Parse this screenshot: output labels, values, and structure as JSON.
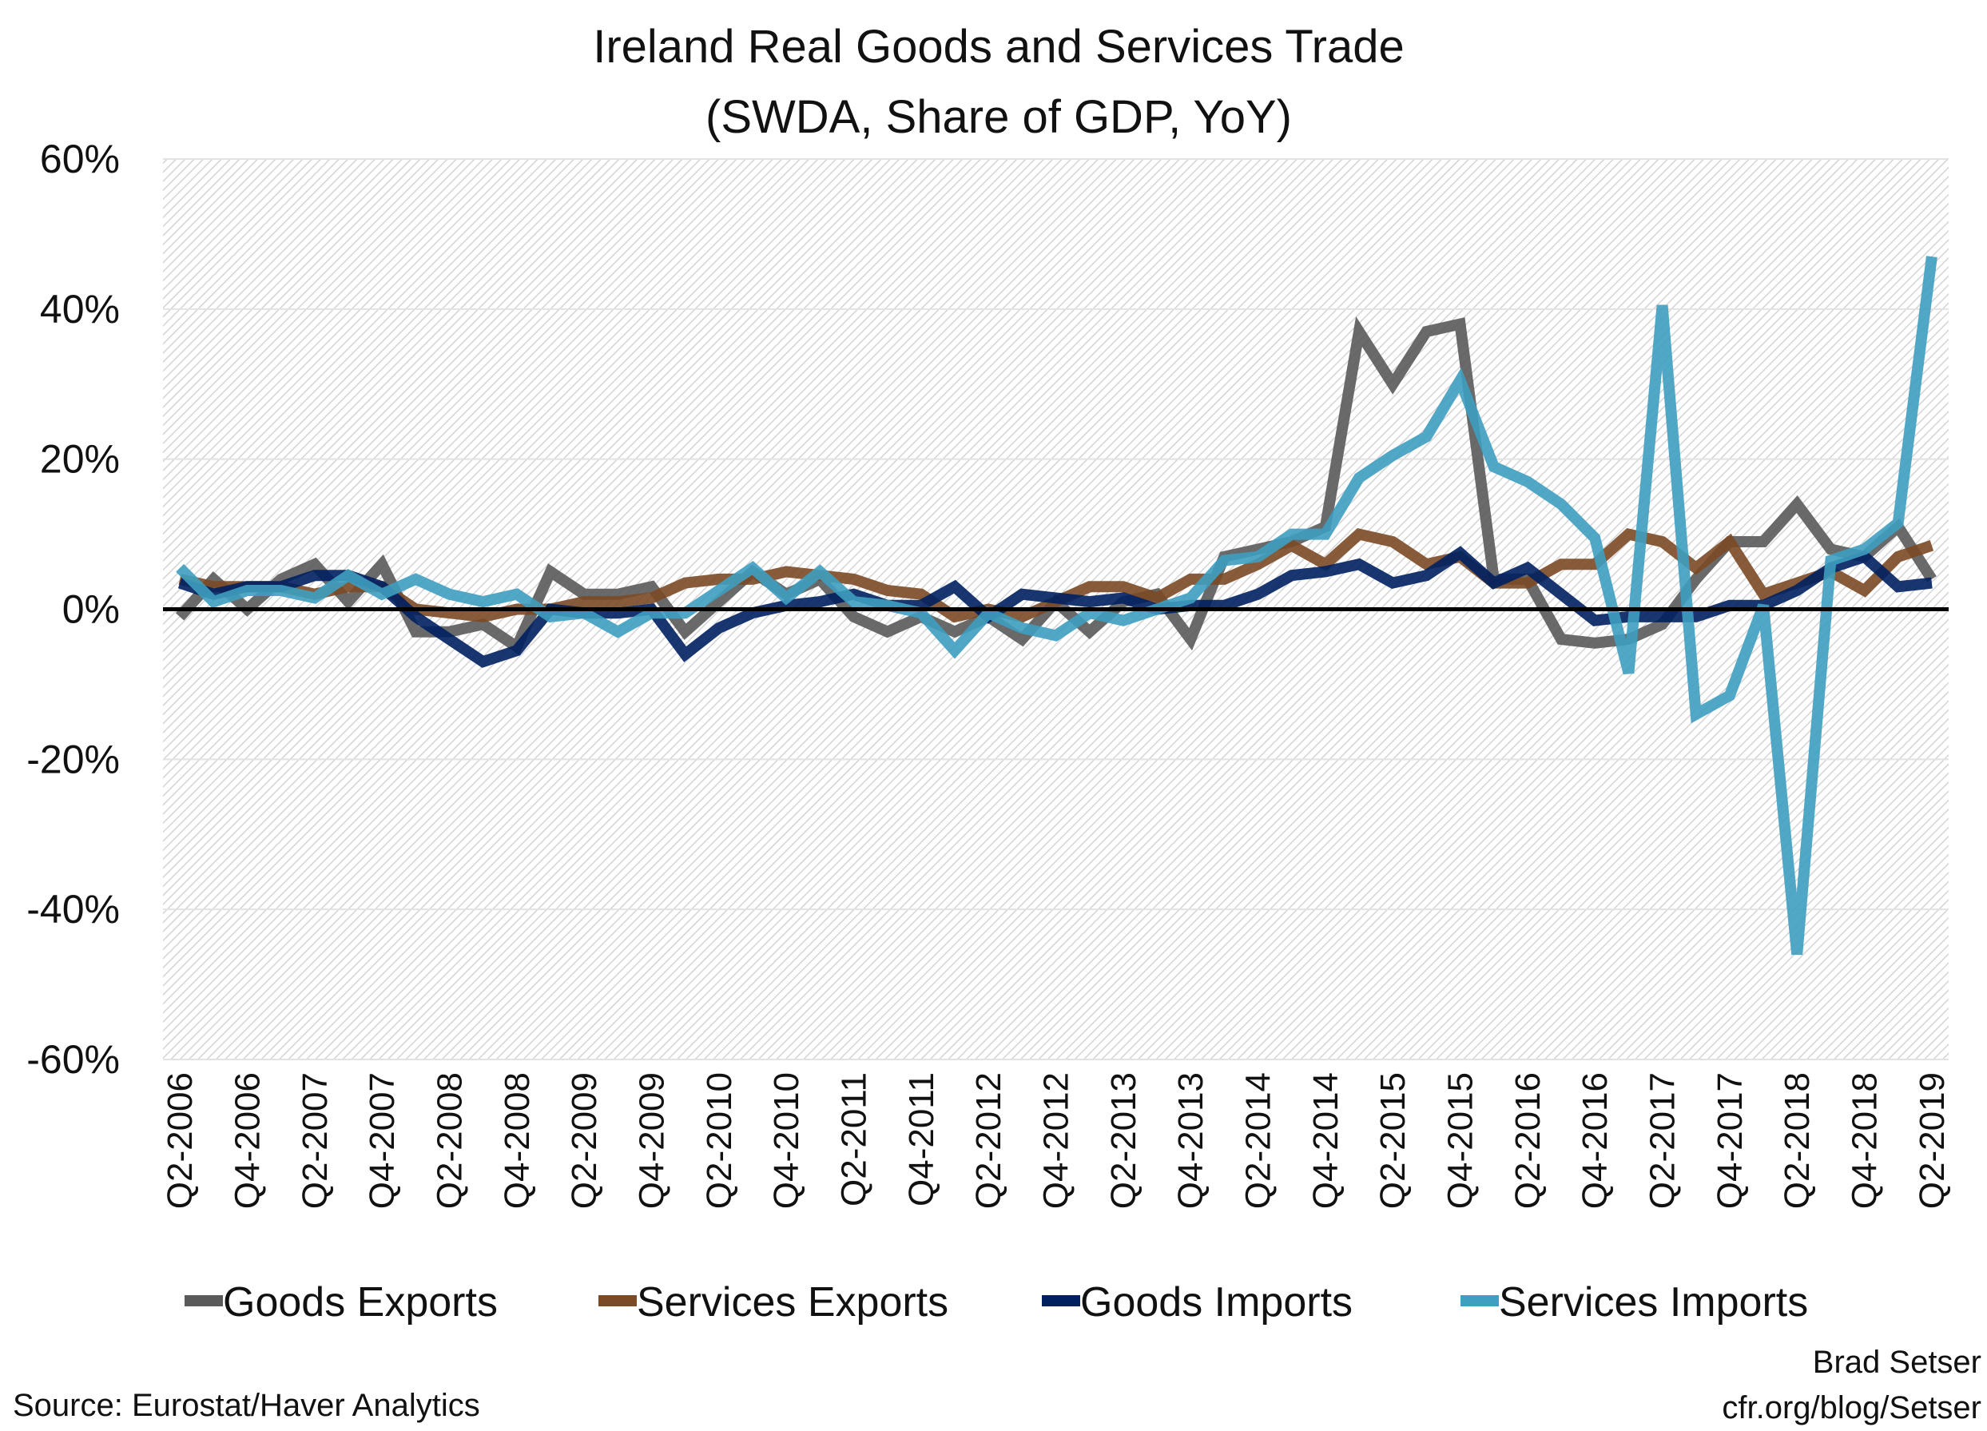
{
  "chart_data": {
    "type": "line",
    "title": "Ireland Real Goods and Services Trade",
    "subtitle": "(SWDA, Share of GDP, YoY)",
    "xlabel": "",
    "ylabel": "",
    "ylim": [
      -60,
      60
    ],
    "yticks": [
      "60%",
      "40%",
      "20%",
      "0%",
      "-20%",
      "-40%",
      "-60%"
    ],
    "ytick_values": [
      60,
      40,
      20,
      0,
      -20,
      -40,
      -60
    ],
    "grid": true,
    "legend_position": "bottom",
    "x": [
      "Q2-2006",
      "Q3-2006",
      "Q4-2006",
      "Q1-2007",
      "Q2-2007",
      "Q3-2007",
      "Q4-2007",
      "Q1-2008",
      "Q2-2008",
      "Q3-2008",
      "Q4-2008",
      "Q1-2009",
      "Q2-2009",
      "Q3-2009",
      "Q4-2009",
      "Q1-2010",
      "Q2-2010",
      "Q3-2010",
      "Q4-2010",
      "Q1-2011",
      "Q2-2011",
      "Q3-2011",
      "Q4-2011",
      "Q1-2012",
      "Q2-2012",
      "Q3-2012",
      "Q4-2012",
      "Q1-2013",
      "Q2-2013",
      "Q3-2013",
      "Q4-2013",
      "Q1-2014",
      "Q2-2014",
      "Q3-2014",
      "Q4-2014",
      "Q1-2015",
      "Q2-2015",
      "Q3-2015",
      "Q4-2015",
      "Q1-2016",
      "Q2-2016",
      "Q3-2016",
      "Q4-2016",
      "Q1-2017",
      "Q2-2017",
      "Q3-2017",
      "Q4-2017",
      "Q1-2018",
      "Q2-2018",
      "Q3-2018",
      "Q4-2018",
      "Q1-2019",
      "Q2-2019"
    ],
    "xtick_labels": [
      "Q2-2006",
      "Q4-2006",
      "Q2-2007",
      "Q4-2007",
      "Q2-2008",
      "Q4-2008",
      "Q2-2009",
      "Q4-2009",
      "Q2-2010",
      "Q4-2010",
      "Q2-2011",
      "Q4-2011",
      "Q2-2012",
      "Q4-2012",
      "Q2-2013",
      "Q4-2013",
      "Q2-2014",
      "Q4-2014",
      "Q2-2015",
      "Q4-2015",
      "Q2-2016",
      "Q4-2016",
      "Q2-2017",
      "Q4-2017",
      "Q2-2018",
      "Q4-2018",
      "Q2-2019"
    ],
    "series": [
      {
        "name": "Goods Exports",
        "color": "#5a5a5a",
        "values": [
          -1,
          4,
          0,
          4,
          6,
          1,
          6,
          -3,
          -3,
          -2,
          -5,
          5,
          2,
          2,
          3,
          -3,
          1,
          5,
          2,
          4,
          -1,
          -3,
          -1,
          -3,
          -1,
          -4,
          1,
          -3,
          1,
          2,
          -4,
          7,
          8,
          9,
          11,
          37,
          30,
          37,
          38,
          4,
          4,
          -4,
          -4.5,
          -4,
          -2,
          4,
          9,
          9,
          14,
          8,
          7,
          11,
          4
        ]
      },
      {
        "name": "Services Exports",
        "color": "#7b4a26",
        "values": [
          4,
          3,
          3,
          3,
          2,
          3,
          3,
          0,
          -0.5,
          -1,
          0,
          0,
          1,
          1,
          1.5,
          3.5,
          4,
          4,
          5,
          4.5,
          4,
          2.5,
          2,
          -1,
          0,
          -1,
          1,
          3,
          3,
          1.5,
          4,
          4,
          6,
          8.5,
          6,
          10,
          9,
          6,
          7,
          3.5,
          3.5,
          6,
          6,
          10,
          9,
          5.5,
          9,
          2,
          3.5,
          5,
          2.5,
          7,
          8.5
        ]
      },
      {
        "name": "Goods Imports",
        "color": "#002060",
        "values": [
          3.5,
          2,
          3,
          3,
          4.5,
          4.5,
          3,
          -1,
          -4,
          -7,
          -5.5,
          0,
          -0.5,
          -0.5,
          0,
          -6,
          -2.5,
          -0.5,
          0.5,
          1,
          2,
          0.5,
          0.5,
          3,
          -1,
          2,
          1.5,
          1,
          1.5,
          0,
          0.5,
          0.5,
          2,
          4.5,
          5,
          6,
          3.5,
          4.5,
          7.5,
          3.5,
          5.5,
          2,
          -1.5,
          -1,
          -1,
          -1,
          0.5,
          0.5,
          2.5,
          5.5,
          7,
          3,
          3.5
        ]
      },
      {
        "name": "Services Imports",
        "color": "#3e9fc0",
        "values": [
          5.5,
          1,
          2.5,
          2.5,
          1.5,
          4.5,
          2,
          4,
          2,
          1,
          2,
          -1,
          -0.5,
          -3,
          -0.5,
          -0.5,
          2.5,
          5.5,
          1.5,
          5,
          1,
          0.5,
          -0.5,
          -5.5,
          -0.5,
          -2.5,
          -3.5,
          -0.5,
          -1.5,
          0,
          1.5,
          6.5,
          7,
          10,
          10,
          17.5,
          20.5,
          23,
          30.5,
          19,
          17,
          14,
          9.5,
          -8.5,
          40.5,
          -14,
          -11.5,
          0.5,
          -46,
          6.5,
          8,
          11.5,
          47
        ]
      }
    ]
  },
  "footer": {
    "source": "Source: Eurostat/Haver Analytics",
    "author": "Brad Setser",
    "url": "cfr.org/blog/Setser"
  }
}
